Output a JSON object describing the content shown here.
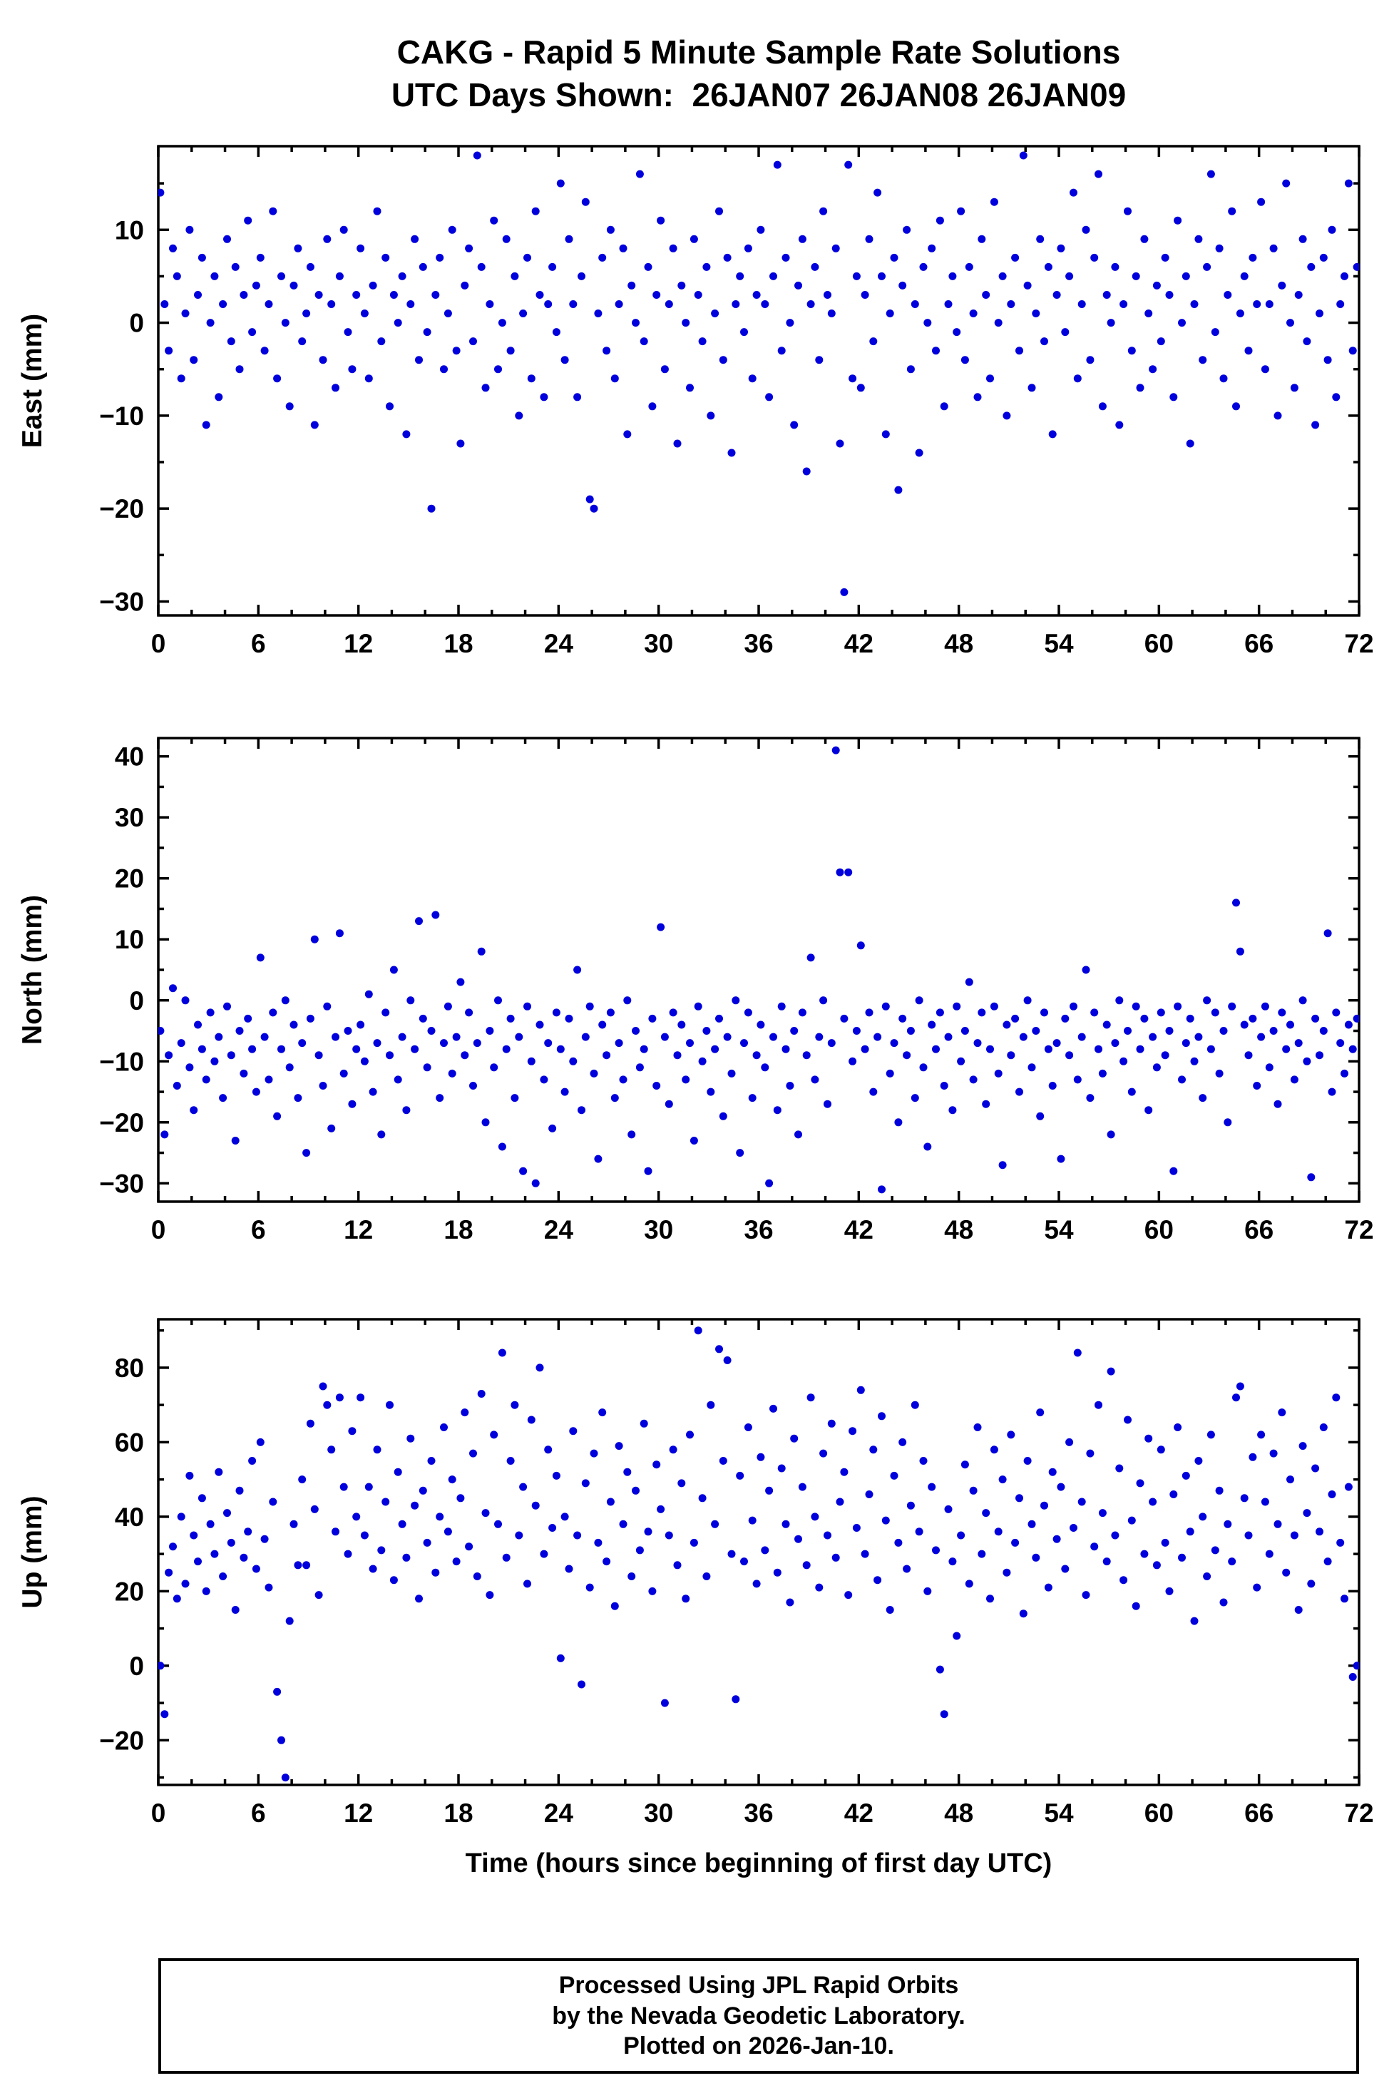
{
  "title": {
    "line1": "CAKG - Rapid 5 Minute Sample Rate Solutions",
    "line2": "UTC Days Shown:  26JAN07 26JAN08 26JAN09"
  },
  "footer": {
    "line1": "Processed Using JPL Rapid Orbits",
    "line2": "by the Nevada Geodetic Laboratory.",
    "line3": "Plotted on 2026-Jan-10."
  },
  "chart_data": {
    "type": "scatter",
    "station": "CAKG",
    "marker_color": "#0000dd",
    "grid": false,
    "legend": "none",
    "x": {
      "label": "Time (hours since beginning of first day UTC)",
      "lim": [
        0,
        72
      ],
      "ticks": [
        0,
        6,
        12,
        18,
        24,
        30,
        36,
        42,
        48,
        54,
        60,
        66,
        72
      ],
      "minor_step": 2,
      "start": 0.125,
      "step": 0.25
    },
    "panels": [
      {
        "name": "east",
        "ylabel": "East (mm)",
        "ylim": [
          -31.5,
          19
        ],
        "yticks": [
          -30,
          -20,
          -10,
          0,
          10
        ],
        "yminor_step": 5,
        "values": [
          14,
          2,
          -3,
          8,
          5,
          -6,
          1,
          10,
          -4,
          3,
          7,
          -11,
          0,
          5,
          -8,
          2,
          9,
          -2,
          6,
          -5,
          3,
          11,
          -1,
          4,
          7,
          -3,
          2,
          12,
          -6,
          5,
          0,
          -9,
          4,
          8,
          -2,
          1,
          6,
          -11,
          3,
          -4,
          9,
          2,
          -7,
          5,
          10,
          -1,
          -5,
          3,
          8,
          1,
          -6,
          4,
          12,
          -2,
          7,
          -9,
          3,
          0,
          5,
          -12,
          2,
          9,
          -4,
          6,
          -1,
          -20,
          3,
          7,
          -5,
          1,
          10,
          -3,
          -13,
          4,
          8,
          -2,
          18,
          6,
          -7,
          2,
          11,
          -5,
          0,
          9,
          -3,
          5,
          -10,
          1,
          7,
          -6,
          12,
          3,
          -8,
          2,
          6,
          -1,
          15,
          -4,
          9,
          2,
          -8,
          5,
          13,
          -19,
          -20,
          1,
          7,
          -3,
          10,
          -6,
          2,
          8,
          -12,
          4,
          0,
          16,
          -2,
          6,
          -9,
          3,
          11,
          -5,
          2,
          8,
          -13,
          4,
          0,
          -7,
          9,
          3,
          -2,
          6,
          -10,
          1,
          12,
          -4,
          7,
          -14,
          2,
          5,
          -1,
          8,
          -6,
          3,
          10,
          2,
          -8,
          5,
          17,
          -3,
          7,
          0,
          -11,
          4,
          9,
          -16,
          2,
          6,
          -4,
          12,
          3,
          1,
          8,
          -13,
          -29,
          17,
          -6,
          5,
          -7,
          3,
          9,
          -2,
          14,
          5,
          -12,
          1,
          7,
          -18,
          4,
          10,
          -5,
          2,
          -14,
          6,
          0,
          8,
          -3,
          11,
          -9,
          2,
          5,
          -1,
          12,
          -4,
          6,
          1,
          -8,
          9,
          3,
          -6,
          13,
          0,
          5,
          -10,
          2,
          7,
          -3,
          18,
          4,
          -7,
          1,
          9,
          -2,
          6,
          -12,
          3,
          8,
          -1,
          5,
          14,
          -6,
          2,
          10,
          -4,
          7,
          16,
          -9,
          3,
          0,
          6,
          -11,
          2,
          12,
          -3,
          5,
          -7,
          9,
          1,
          -5,
          4,
          -2,
          7,
          3,
          -8,
          11,
          0,
          5,
          -13,
          2,
          9,
          -4,
          6,
          16,
          -1,
          8,
          -6,
          3,
          12,
          -9,
          1,
          5,
          -3,
          7,
          2,
          13,
          -5,
          2,
          8,
          -10,
          4,
          15,
          0,
          -7,
          3,
          9,
          -2,
          6,
          -11,
          1,
          7,
          -4,
          10,
          -8,
          2,
          5,
          15,
          -3,
          6
        ]
      },
      {
        "name": "north",
        "ylabel": "North (mm)",
        "ylim": [
          -33,
          43
        ],
        "yticks": [
          -30,
          -20,
          -10,
          0,
          10,
          20,
          30,
          40
        ],
        "yminor_step": 5,
        "values": [
          -5,
          -22,
          -9,
          2,
          -14,
          -7,
          0,
          -11,
          -18,
          -4,
          -8,
          -13,
          -2,
          -10,
          -6,
          -16,
          -1,
          -9,
          -23,
          -5,
          -12,
          -3,
          -8,
          -15,
          7,
          -6,
          -13,
          -2,
          -19,
          -8,
          0,
          -11,
          -4,
          -16,
          -7,
          -25,
          -3,
          10,
          -9,
          -14,
          -1,
          -21,
          -6,
          11,
          -12,
          -5,
          -17,
          -8,
          -4,
          -10,
          1,
          -15,
          -7,
          -22,
          -2,
          -9,
          5,
          -13,
          -6,
          -18,
          0,
          -8,
          13,
          -3,
          -11,
          -5,
          14,
          -16,
          -7,
          -1,
          -12,
          -6,
          3,
          -9,
          -2,
          -14,
          -7,
          8,
          -20,
          -5,
          -11,
          0,
          -24,
          -8,
          -3,
          -16,
          -6,
          -28,
          -1,
          -10,
          -30,
          -4,
          -13,
          -7,
          -21,
          -2,
          -8,
          -15,
          -3,
          -10,
          5,
          -18,
          -6,
          -1,
          -12,
          -26,
          -4,
          -9,
          -2,
          -16,
          -7,
          -13,
          0,
          -22,
          -5,
          -11,
          -8,
          -28,
          -3,
          -14,
          12,
          -6,
          -17,
          -2,
          -9,
          -4,
          -13,
          -7,
          -23,
          -1,
          -10,
          -5,
          -15,
          -8,
          -3,
          -19,
          -6,
          -12,
          0,
          -25,
          -7,
          -2,
          -16,
          -9,
          -4,
          -11,
          -30,
          -6,
          -18,
          -1,
          -8,
          -14,
          -5,
          -22,
          -2,
          -9,
          7,
          -13,
          -6,
          0,
          -17,
          -7,
          41,
          21,
          -3,
          21,
          -10,
          -5,
          9,
          -8,
          -2,
          -15,
          -6,
          -31,
          -1,
          -12,
          -7,
          -20,
          -3,
          -9,
          -5,
          -16,
          0,
          -11,
          -24,
          -4,
          -8,
          -2,
          -14,
          -6,
          -18,
          -1,
          -10,
          -5,
          3,
          -13,
          -7,
          -2,
          -17,
          -8,
          -1,
          -12,
          -27,
          -4,
          -9,
          -3,
          -15,
          -6,
          0,
          -11,
          -5,
          -19,
          -2,
          -8,
          -14,
          -7,
          -26,
          -3,
          -9,
          -1,
          -13,
          -6,
          5,
          -16,
          -2,
          -8,
          -12,
          -4,
          -22,
          -7,
          0,
          -10,
          -5,
          -15,
          -1,
          -8,
          -3,
          -18,
          -6,
          -11,
          -2,
          -9,
          -5,
          -28,
          -1,
          -13,
          -7,
          -3,
          -10,
          -6,
          -16,
          0,
          -8,
          -2,
          -12,
          -5,
          -20,
          -1,
          16,
          8,
          -4,
          -9,
          -3,
          -14,
          -6,
          -1,
          -11,
          -5,
          -17,
          -2,
          -8,
          -4,
          -13,
          -7,
          0,
          -10,
          -29,
          -3,
          -9,
          -5,
          11,
          -15,
          -2,
          -7,
          -12,
          -4,
          -8,
          -3
        ]
      },
      {
        "name": "up",
        "ylabel": "Up (mm)",
        "ylim": [
          -32,
          93
        ],
        "yticks": [
          -20,
          0,
          20,
          40,
          60,
          80
        ],
        "yminor_step": 10,
        "values": [
          0,
          -13,
          25,
          32,
          18,
          40,
          22,
          51,
          35,
          28,
          45,
          20,
          38,
          30,
          52,
          24,
          41,
          33,
          15,
          47,
          29,
          36,
          55,
          26,
          60,
          34,
          21,
          44,
          -7,
          -20,
          -30,
          12,
          38,
          27,
          50,
          27,
          65,
          42,
          19,
          75,
          70,
          58,
          36,
          72,
          48,
          30,
          63,
          40,
          72,
          35,
          48,
          26,
          58,
          31,
          44,
          70,
          23,
          52,
          38,
          29,
          61,
          43,
          18,
          47,
          33,
          55,
          25,
          40,
          64,
          36,
          50,
          28,
          45,
          68,
          32,
          57,
          24,
          73,
          41,
          19,
          62,
          38,
          84,
          29,
          55,
          70,
          35,
          48,
          22,
          66,
          43,
          80,
          30,
          58,
          37,
          51,
          2,
          40,
          26,
          63,
          35,
          -5,
          49,
          21,
          57,
          33,
          68,
          28,
          44,
          16,
          59,
          38,
          52,
          24,
          47,
          31,
          65,
          36,
          20,
          54,
          42,
          -10,
          35,
          58,
          27,
          49,
          18,
          62,
          33,
          90,
          45,
          24,
          70,
          38,
          85,
          55,
          82,
          30,
          -9,
          51,
          28,
          64,
          39,
          22,
          56,
          31,
          47,
          69,
          25,
          53,
          38,
          17,
          61,
          34,
          48,
          27,
          72,
          40,
          21,
          57,
          35,
          65,
          29,
          44,
          52,
          19,
          63,
          37,
          74,
          30,
          46,
          58,
          23,
          67,
          39,
          15,
          51,
          33,
          60,
          26,
          43,
          70,
          36,
          55,
          20,
          48,
          31,
          -1,
          -13,
          42,
          28,
          8,
          35,
          54,
          22,
          47,
          64,
          30,
          41,
          18,
          58,
          36,
          50,
          25,
          62,
          33,
          45,
          14,
          55,
          38,
          29,
          68,
          43,
          21,
          52,
          34,
          48,
          26,
          60,
          37,
          84,
          44,
          19,
          57,
          32,
          70,
          41,
          28,
          79,
          35,
          53,
          23,
          66,
          39,
          16,
          49,
          30,
          61,
          44,
          27,
          58,
          33,
          20,
          46,
          64,
          29,
          51,
          36,
          12,
          55,
          40,
          24,
          62,
          31,
          47,
          17,
          38,
          28,
          72,
          75,
          45,
          35,
          56,
          21,
          62,
          44,
          30,
          57,
          38,
          68,
          25,
          50,
          35,
          15,
          59,
          41,
          22,
          53,
          36,
          64,
          28,
          46,
          72,
          33,
          18,
          48,
          -3,
          0
        ]
      }
    ]
  }
}
